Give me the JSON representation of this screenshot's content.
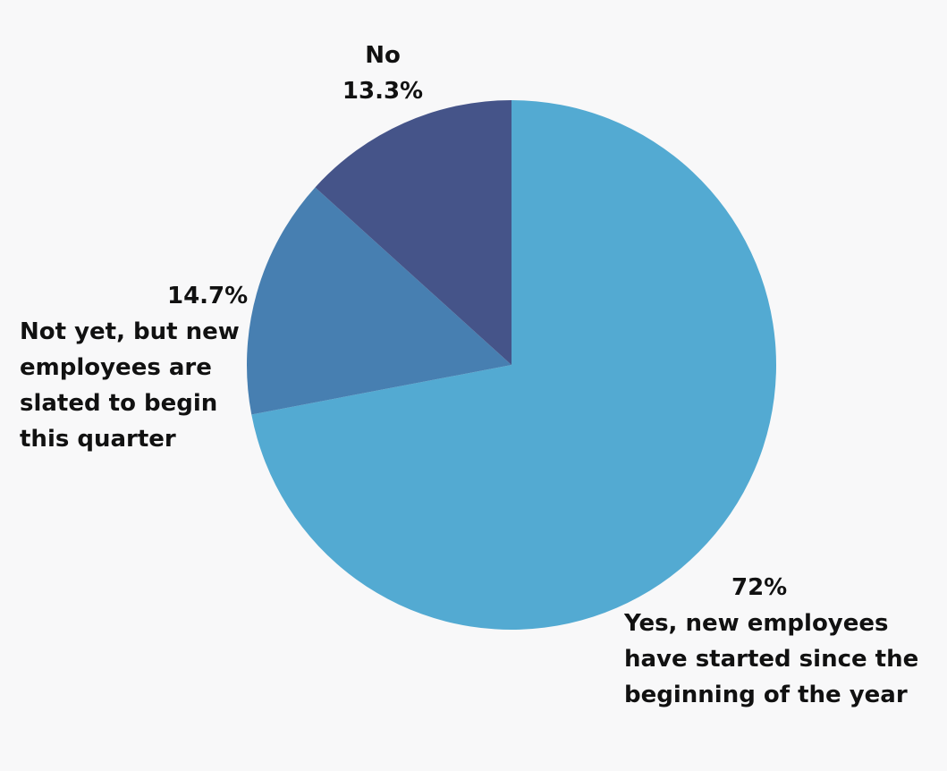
{
  "chart_data": {
    "type": "pie",
    "title": "",
    "slices": [
      {
        "label": "Yes, new employees have started since the beginning of the year",
        "label_lines": [
          "Yes, new employees",
          "have started since the",
          "beginning of the year"
        ],
        "value": 72,
        "value_label": "72%",
        "color": "#53aad2"
      },
      {
        "label": "Not yet, but new employees are slated to begin this quarter",
        "label_lines": [
          "Not yet, but new",
          "employees are",
          "slated to begin",
          "this quarter"
        ],
        "value": 14.7,
        "value_label": "14.7%",
        "color": "#477fb1"
      },
      {
        "label": "No",
        "label_lines": [
          "No"
        ],
        "value": 13.3,
        "value_label": "13.3%",
        "color": "#455489"
      }
    ],
    "start": "12 o'clock",
    "direction": "clockwise"
  }
}
